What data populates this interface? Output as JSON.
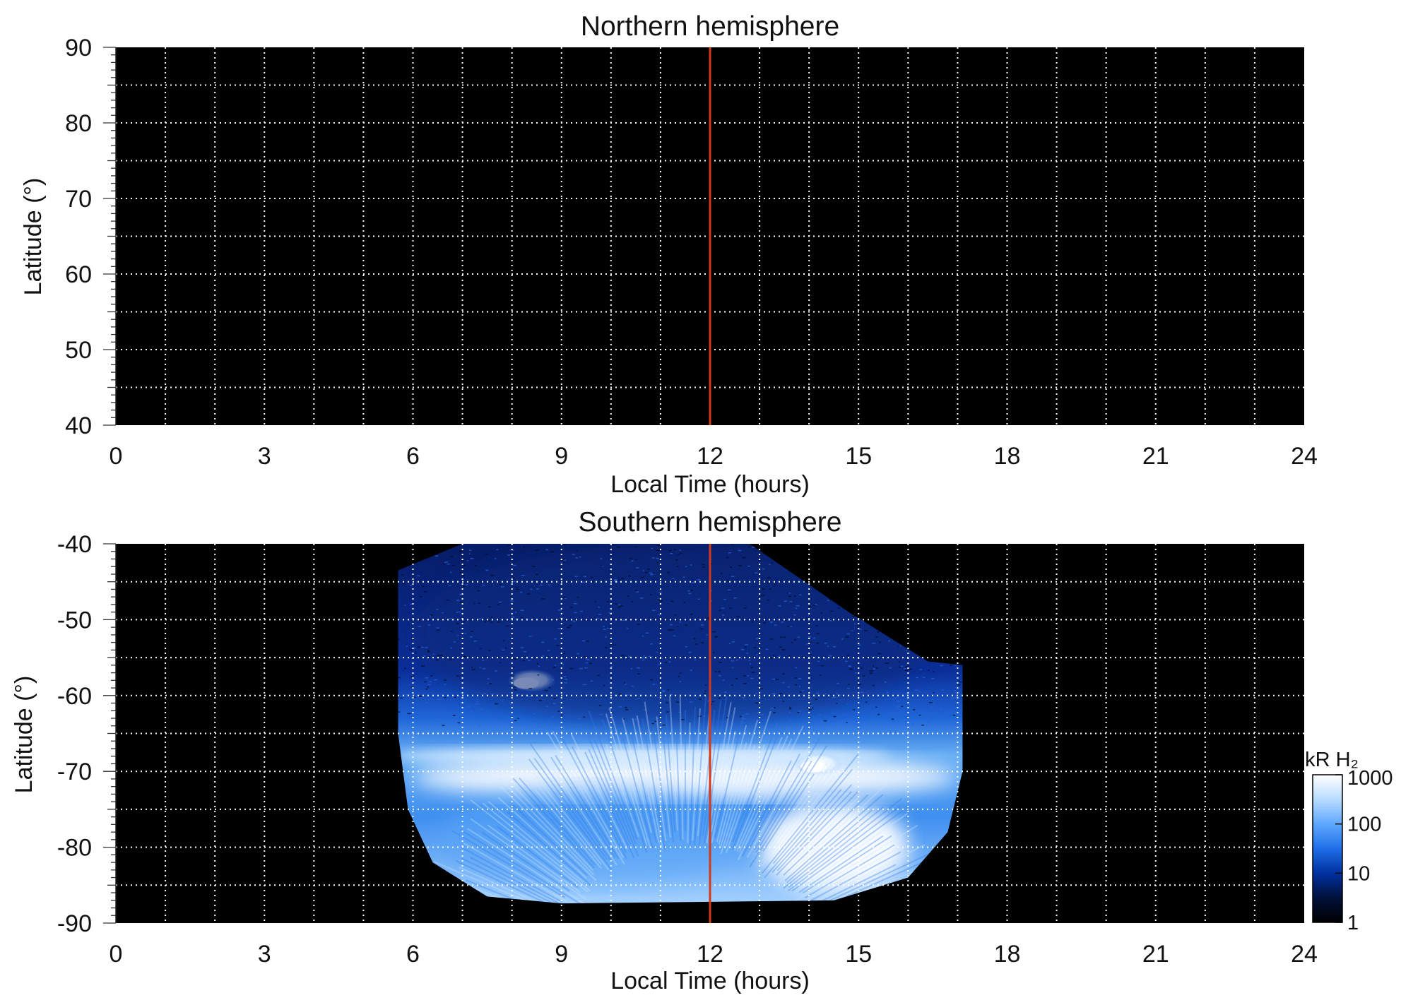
{
  "chart_data": [
    {
      "type": "heatmap",
      "title": "Northern hemisphere",
      "xlabel": "Local Time (hours)",
      "ylabel": "Latitude (°)",
      "xlim": [
        0,
        24
      ],
      "ylim": [
        40,
        90
      ],
      "x_ticks": [
        0,
        3,
        6,
        9,
        12,
        15,
        18,
        21,
        24
      ],
      "y_ticks": [
        40,
        50,
        60,
        70,
        80,
        90
      ],
      "grid": true,
      "background": "#000000",
      "data_coverage": "none",
      "marker_line": {
        "x": 12,
        "color": "#d23a1a"
      }
    },
    {
      "type": "heatmap",
      "title": "Southern hemisphere",
      "xlabel": "Local Time (hours)",
      "ylabel": "Latitude (°)",
      "xlim": [
        0,
        24
      ],
      "ylim": [
        -90,
        -40
      ],
      "x_ticks": [
        0,
        3,
        6,
        9,
        12,
        15,
        18,
        21,
        24
      ],
      "y_ticks": [
        -40,
        -50,
        -60,
        -70,
        -80,
        -90
      ],
      "grid": true,
      "background": "#000000",
      "marker_line": {
        "x": 12,
        "color": "#d23a1a"
      },
      "data_coverage": {
        "local_time_range": [
          5.7,
          17.1
        ],
        "latitude_range": [
          -87.5,
          -40
        ]
      },
      "auroral_features": [
        {
          "feature": "main auroral oval",
          "local_time": [
            6,
            17
          ],
          "latitude_center": -70,
          "intensity_kR": 1000
        },
        {
          "feature": "bright spot",
          "local_time": 8.4,
          "latitude": -58,
          "intensity_kR": 1000
        },
        {
          "feature": "bright spot",
          "local_time": 14.2,
          "latitude": -69,
          "intensity_kR": 1000
        },
        {
          "feature": "bright afternoon region",
          "local_time": [
            13,
            16
          ],
          "latitude": [
            -86,
            -74
          ],
          "intensity_kR": 1000
        },
        {
          "feature": "diffuse polar emission",
          "local_time": [
            6.5,
            13
          ],
          "latitude": [
            -85,
            -72
          ],
          "intensity_kR": 200
        },
        {
          "feature": "low-latitude background",
          "local_time": [
            6,
            16.5
          ],
          "latitude": [
            -64,
            -40
          ],
          "intensity_kR": 10
        }
      ],
      "colorbar": {
        "label": "kR H₂",
        "scale": "log",
        "range": [
          1,
          1000
        ],
        "ticks": [
          "1",
          "10",
          "100",
          "1000"
        ],
        "colormap": [
          "#000000",
          "#00103a",
          "#0030a0",
          "#1f6fe8",
          "#5fa8ff",
          "#b8dcff",
          "#ffffff"
        ]
      }
    }
  ]
}
